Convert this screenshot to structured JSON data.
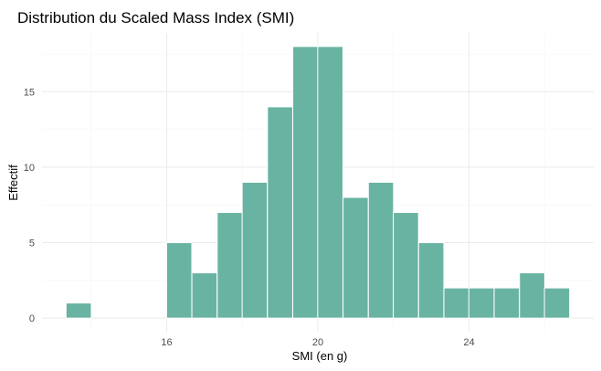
{
  "chart_data": {
    "type": "bar",
    "title": "Distribution du Scaled Mass Index (SMI)",
    "xlabel": "SMI (en g)",
    "ylabel": "Effectif",
    "bin_width": 0.667,
    "bins": [
      {
        "x": 13.67,
        "count": 1
      },
      {
        "x": 14.33,
        "count": 0
      },
      {
        "x": 15.0,
        "count": 0
      },
      {
        "x": 15.67,
        "count": 0
      },
      {
        "x": 16.33,
        "count": 5
      },
      {
        "x": 17.0,
        "count": 3
      },
      {
        "x": 17.67,
        "count": 7
      },
      {
        "x": 18.33,
        "count": 9
      },
      {
        "x": 19.0,
        "count": 14
      },
      {
        "x": 19.67,
        "count": 18
      },
      {
        "x": 20.33,
        "count": 18
      },
      {
        "x": 21.0,
        "count": 8
      },
      {
        "x": 21.67,
        "count": 9
      },
      {
        "x": 22.33,
        "count": 7
      },
      {
        "x": 23.0,
        "count": 5
      },
      {
        "x": 23.67,
        "count": 2
      },
      {
        "x": 24.33,
        "count": 2
      },
      {
        "x": 25.0,
        "count": 2
      },
      {
        "x": 25.67,
        "count": 3
      },
      {
        "x": 26.33,
        "count": 2
      }
    ],
    "xlim": [
      12.7,
      27.3
    ],
    "ylim": [
      -0.9,
      18.9
    ],
    "x_ticks": [
      16,
      20,
      24
    ],
    "x_tick_labels": [
      "16",
      "20",
      "24"
    ],
    "x_minor_ticks": [
      14,
      18,
      22,
      26
    ],
    "y_ticks": [
      0,
      5,
      10,
      15
    ],
    "y_tick_labels": [
      "0",
      "5",
      "10",
      "15"
    ],
    "y_minor_ticks": [
      2.5,
      7.5,
      12.5,
      17.5
    ],
    "grid": true,
    "colors": {
      "bar_fill": "#69b3a2",
      "bar_stroke": "#ffffff",
      "grid_major": "#ebebeb",
      "grid_minor": "#f5f5f5",
      "tick_text": "#4d4d4d",
      "text": "#000000"
    }
  }
}
